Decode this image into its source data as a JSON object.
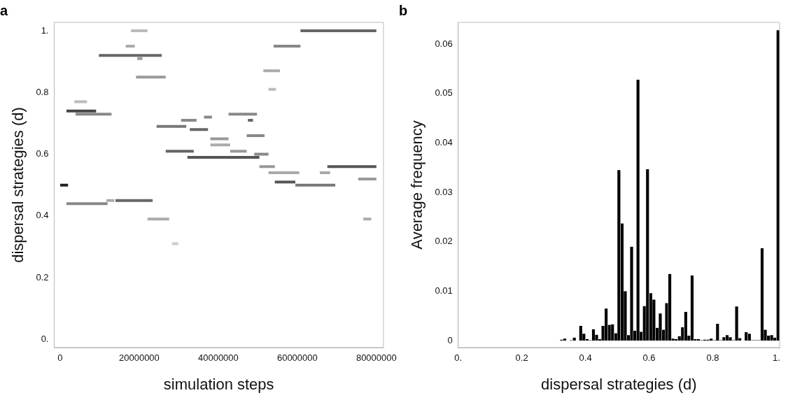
{
  "chart_data": [
    {
      "type": "line",
      "title": "a",
      "xlabel": "simulation steps",
      "ylabel": "dispersal strategies (d)",
      "legend": false,
      "grid": false,
      "xlim": [
        -1500000,
        81800000
      ],
      "xticks": [
        0,
        20000000,
        40000000,
        60000000,
        80000000
      ],
      "ylim": [
        -0.026,
        1.027
      ],
      "yticks": [
        {
          "value": 0,
          "label": "0."
        },
        0.2,
        0.4,
        0.6,
        0.8,
        {
          "value": 1,
          "label": "1."
        }
      ],
      "series": [
        {
          "color": "#666666",
          "x": [
            60800000,
            80000000
          ],
          "values": [
            1.0,
            1.0
          ]
        },
        {
          "color": "#bbbbbb",
          "x": [
            17900000,
            22100000
          ],
          "values": [
            1.0,
            1.0
          ]
        },
        {
          "color": "#888888",
          "x": [
            54000000,
            60800000
          ],
          "values": [
            0.95,
            0.95
          ]
        },
        {
          "color": "#aaaaaa",
          "x": [
            16600000,
            18900000
          ],
          "values": [
            0.95,
            0.95
          ]
        },
        {
          "color": "#666666",
          "x": [
            9800000,
            25700000
          ],
          "values": [
            0.92,
            0.92
          ]
        },
        {
          "color": "#999999",
          "x": [
            19500000,
            20800000
          ],
          "values": [
            0.91,
            0.91
          ]
        },
        {
          "color": "#999999",
          "x": [
            19200000,
            26700000
          ],
          "values": [
            0.85,
            0.85
          ]
        },
        {
          "color": "#aaaaaa",
          "x": [
            51400000,
            55600000
          ],
          "values": [
            0.87,
            0.87
          ]
        },
        {
          "color": "#bbbbbb",
          "x": [
            52700000,
            54600000
          ],
          "values": [
            0.81,
            0.81
          ]
        },
        {
          "color": "#bbbbbb",
          "x": [
            3600000,
            6800000
          ],
          "values": [
            0.77,
            0.77
          ]
        },
        {
          "color": "#444444",
          "x": [
            1600000,
            9100000
          ],
          "values": [
            0.74,
            0.74
          ]
        },
        {
          "color": "#888888",
          "x": [
            3900000,
            13000000
          ],
          "values": [
            0.73,
            0.73
          ]
        },
        {
          "color": "#888888",
          "x": [
            42600000,
            49800000
          ],
          "values": [
            0.73,
            0.73
          ]
        },
        {
          "color": "#888888",
          "x": [
            36400000,
            38400000
          ],
          "values": [
            0.72,
            0.72
          ]
        },
        {
          "color": "#888888",
          "x": [
            30600000,
            34500000
          ],
          "values": [
            0.71,
            0.71
          ]
        },
        {
          "color": "#666666",
          "x": [
            47500000,
            48800000
          ],
          "values": [
            0.71,
            0.71
          ]
        },
        {
          "color": "#777777",
          "x": [
            24400000,
            31900000
          ],
          "values": [
            0.69,
            0.69
          ]
        },
        {
          "color": "#666666",
          "x": [
            32800000,
            37400000
          ],
          "values": [
            0.68,
            0.68
          ]
        },
        {
          "color": "#888888",
          "x": [
            47200000,
            51700000
          ],
          "values": [
            0.66,
            0.66
          ]
        },
        {
          "color": "#999999",
          "x": [
            38000000,
            42600000
          ],
          "values": [
            0.65,
            0.65
          ]
        },
        {
          "color": "#aaaaaa",
          "x": [
            38000000,
            43000000
          ],
          "values": [
            0.63,
            0.63
          ]
        },
        {
          "color": "#666666",
          "x": [
            26700000,
            33800000
          ],
          "values": [
            0.61,
            0.61
          ]
        },
        {
          "color": "#999999",
          "x": [
            43000000,
            47200000
          ],
          "values": [
            0.61,
            0.61
          ]
        },
        {
          "color": "#888888",
          "x": [
            49100000,
            52700000
          ],
          "values": [
            0.6,
            0.6
          ]
        },
        {
          "color": "#555555",
          "x": [
            32200000,
            50400000
          ],
          "values": [
            0.59,
            0.59
          ]
        },
        {
          "color": "#999999",
          "x": [
            50400000,
            54300000
          ],
          "values": [
            0.56,
            0.56
          ]
        },
        {
          "color": "#555555",
          "x": [
            67600000,
            80000000
          ],
          "values": [
            0.56,
            0.56
          ]
        },
        {
          "color": "#aaaaaa",
          "x": [
            52700000,
            60500000
          ],
          "values": [
            0.54,
            0.54
          ]
        },
        {
          "color": "#aaaaaa",
          "x": [
            65700000,
            68300000
          ],
          "values": [
            0.54,
            0.54
          ]
        },
        {
          "color": "#999999",
          "x": [
            75400000,
            80000000
          ],
          "values": [
            0.52,
            0.52
          ]
        },
        {
          "color": "#555555",
          "x": [
            54300000,
            59500000
          ],
          "values": [
            0.51,
            0.51
          ]
        },
        {
          "color": "#222222",
          "x": [
            0,
            2000000
          ],
          "values": [
            0.5,
            0.5
          ]
        },
        {
          "color": "#777777",
          "x": [
            59500000,
            69600000
          ],
          "values": [
            0.5,
            0.5
          ]
        },
        {
          "color": "#666666",
          "x": [
            14000000,
            23400000
          ],
          "values": [
            0.45,
            0.45
          ]
        },
        {
          "color": "#aaaaaa",
          "x": [
            11700000,
            13700000
          ],
          "values": [
            0.45,
            0.45
          ]
        },
        {
          "color": "#888888",
          "x": [
            1600000,
            12000000
          ],
          "values": [
            0.44,
            0.44
          ]
        },
        {
          "color": "#aaaaaa",
          "x": [
            22100000,
            27600000
          ],
          "values": [
            0.39,
            0.39
          ]
        },
        {
          "color": "#aaaaaa",
          "x": [
            76700000,
            78700000
          ],
          "values": [
            0.39,
            0.39
          ]
        },
        {
          "color": "#cccccc",
          "x": [
            28300000,
            29900000
          ],
          "values": [
            0.31,
            0.31
          ]
        }
      ]
    },
    {
      "type": "histogram",
      "title": "b",
      "xlabel": "dispersal strategies (d)",
      "ylabel": "Average frequency",
      "legend": false,
      "grid": false,
      "color": "#000000",
      "xlim": [
        0,
        1.01
      ],
      "xticks": [
        {
          "value": 0,
          "label": "0."
        },
        0.2,
        0.4,
        0.6,
        0.8,
        {
          "value": 1,
          "label": "1."
        }
      ],
      "ylim": [
        -0.0014,
        0.0644
      ],
      "yticks": [
        0,
        0.01,
        0.02,
        0.03,
        0.04,
        0.05,
        0.06
      ],
      "bins": [
        0,
        0.01,
        0.02,
        0.03,
        0.04,
        0.05,
        0.06,
        0.07,
        0.08,
        0.09,
        0.1,
        0.11,
        0.12,
        0.13,
        0.14,
        0.15,
        0.16,
        0.17,
        0.18,
        0.19,
        0.2,
        0.21,
        0.22,
        0.23,
        0.24,
        0.25,
        0.26,
        0.27,
        0.28,
        0.29,
        0.3,
        0.31,
        0.32,
        0.33,
        0.34,
        0.35,
        0.36,
        0.37,
        0.38,
        0.39,
        0.4,
        0.41,
        0.42,
        0.43,
        0.44,
        0.45,
        0.46,
        0.47,
        0.48,
        0.49,
        0.5,
        0.51,
        0.52,
        0.53,
        0.54,
        0.55,
        0.56,
        0.57,
        0.58,
        0.59,
        0.6,
        0.61,
        0.62,
        0.63,
        0.64,
        0.65,
        0.66,
        0.67,
        0.68,
        0.69,
        0.7,
        0.71,
        0.72,
        0.73,
        0.74,
        0.75,
        0.76,
        0.77,
        0.78,
        0.79,
        0.8,
        0.81,
        0.82,
        0.83,
        0.84,
        0.85,
        0.86,
        0.87,
        0.88,
        0.89,
        0.9,
        0.91,
        0.92,
        0.93,
        0.94,
        0.95,
        0.96,
        0.97,
        0.98,
        0.99,
        1.0,
        1.01
      ],
      "values": [
        0,
        0,
        0,
        0,
        0,
        0,
        0,
        0,
        0,
        0,
        0,
        0,
        0,
        0,
        0,
        0,
        0,
        0,
        0,
        0,
        0,
        0,
        0,
        0,
        0,
        0,
        0,
        0,
        0,
        0,
        0,
        0,
        0.0002,
        0.0004,
        0,
        0.0001,
        0.0006,
        0,
        0.003,
        0.0014,
        0.0003,
        0.0001,
        0.0023,
        0.0012,
        0.0003,
        0.003,
        0.0065,
        0.0032,
        0.0033,
        0.0015,
        0.0345,
        0.0237,
        0.01,
        0.0011,
        0.019,
        0.002,
        0.0528,
        0.0018,
        0.007,
        0.0347,
        0.0096,
        0.0083,
        0.0026,
        0.0055,
        0.0022,
        0.0076,
        0.0135,
        0.0004,
        0.0003,
        0.0009,
        0.0027,
        0.0058,
        0.001,
        0.0132,
        0.0003,
        0.0003,
        0.0001,
        0.0002,
        0.0002,
        0.0004,
        0.0001,
        0.0034,
        0.0001,
        0.0007,
        0.0011,
        0.0007,
        0.0001,
        0.0069,
        0.0005,
        0,
        0.0017,
        0.0014,
        0.0001,
        0.0001,
        0.0001,
        0.0187,
        0.0022,
        0.001,
        0.0011,
        0.0006,
        0.0628
      ]
    }
  ]
}
